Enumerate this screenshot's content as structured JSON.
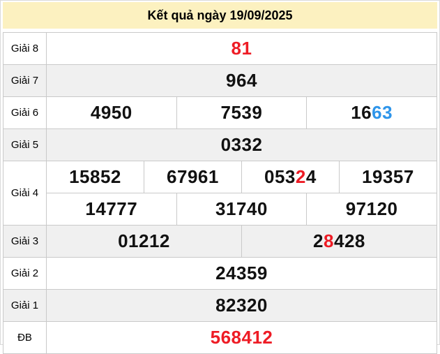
{
  "header": {
    "title": "Kết quả ngày 19/09/2025"
  },
  "colors": {
    "red": "#ee1c25",
    "blue": "#2e95ea",
    "header_bg": "#fcf1c0",
    "shade_bg": "#f0f0f0",
    "border": "#c9c9c9",
    "text": "#111111"
  },
  "results": {
    "rows": [
      {
        "label": "Giải 8",
        "shade": false,
        "lines": [
          [
            {
              "segs": [
                {
                  "t": "81",
                  "c": "red"
                }
              ]
            }
          ]
        ]
      },
      {
        "label": "Giải 7",
        "shade": true,
        "lines": [
          [
            {
              "segs": [
                {
                  "t": "964"
                }
              ]
            }
          ]
        ]
      },
      {
        "label": "Giải 6",
        "shade": false,
        "lines": [
          [
            {
              "segs": [
                {
                  "t": "4950"
                }
              ]
            },
            {
              "segs": [
                {
                  "t": "7539"
                }
              ]
            },
            {
              "segs": [
                {
                  "t": "16"
                },
                {
                  "t": "63",
                  "c": "blue"
                }
              ]
            }
          ]
        ]
      },
      {
        "label": "Giải 5",
        "shade": true,
        "lines": [
          [
            {
              "segs": [
                {
                  "t": "0332"
                }
              ]
            }
          ]
        ]
      },
      {
        "label": "Giải 4",
        "shade": false,
        "lines": [
          [
            {
              "segs": [
                {
                  "t": "15852"
                }
              ]
            },
            {
              "segs": [
                {
                  "t": "67961"
                }
              ]
            },
            {
              "segs": [
                {
                  "t": "053"
                },
                {
                  "t": "2",
                  "c": "red"
                },
                {
                  "t": "4"
                }
              ]
            },
            {
              "segs": [
                {
                  "t": "19357"
                }
              ]
            }
          ],
          [
            {
              "segs": [
                {
                  "t": "14777"
                }
              ]
            },
            {
              "segs": [
                {
                  "t": "31740"
                }
              ]
            },
            {
              "segs": [
                {
                  "t": "97120"
                }
              ]
            }
          ]
        ]
      },
      {
        "label": "Giải 3",
        "shade": true,
        "lines": [
          [
            {
              "segs": [
                {
                  "t": "01212"
                }
              ]
            },
            {
              "segs": [
                {
                  "t": "2"
                },
                {
                  "t": "8",
                  "c": "red"
                },
                {
                  "t": "428"
                }
              ]
            }
          ]
        ]
      },
      {
        "label": "Giải 2",
        "shade": false,
        "lines": [
          [
            {
              "segs": [
                {
                  "t": "24359"
                }
              ]
            }
          ]
        ]
      },
      {
        "label": "Giải 1",
        "shade": true,
        "lines": [
          [
            {
              "segs": [
                {
                  "t": "82320"
                }
              ]
            }
          ]
        ]
      },
      {
        "label": "ĐB",
        "shade": false,
        "lines": [
          [
            {
              "segs": [
                {
                  "t": "568412",
                  "c": "red"
                }
              ]
            }
          ]
        ]
      }
    ]
  }
}
